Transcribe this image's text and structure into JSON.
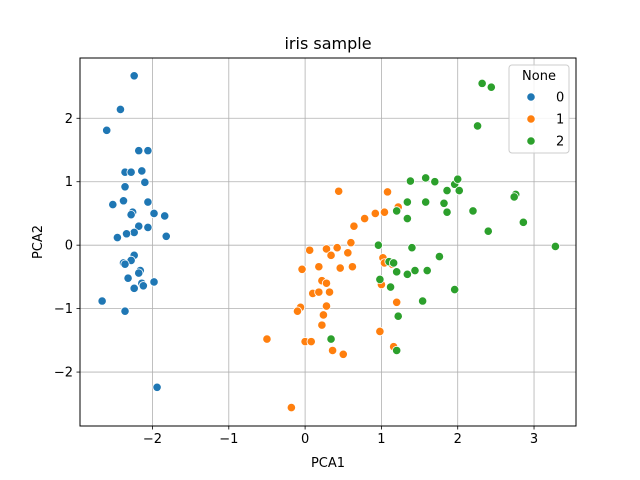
{
  "chart_data": {
    "type": "scatter",
    "title": "iris sample",
    "xlabel": "PCA1",
    "ylabel": "PCA2",
    "xlim": [
      -2.95,
      3.55
    ],
    "ylim": [
      -2.85,
      2.95
    ],
    "xticks": [
      -2,
      -1,
      0,
      1,
      2,
      3
    ],
    "yticks": [
      -2,
      -1,
      0,
      1,
      2
    ],
    "grid": true,
    "legend": {
      "title": "None",
      "placement": "top-right"
    },
    "series": [
      {
        "name": "0",
        "color": "#1f77b4",
        "points": [
          [
            -2.24,
            2.67
          ],
          [
            -2.42,
            2.14
          ],
          [
            -2.6,
            1.81
          ],
          [
            -2.18,
            1.49
          ],
          [
            -2.06,
            1.49
          ],
          [
            -2.36,
            1.15
          ],
          [
            -2.28,
            1.15
          ],
          [
            -2.14,
            1.17
          ],
          [
            -2.1,
            0.99
          ],
          [
            -2.36,
            0.92
          ],
          [
            -2.52,
            0.64
          ],
          [
            -2.38,
            0.7
          ],
          [
            -2.06,
            0.68
          ],
          [
            -2.26,
            0.52
          ],
          [
            -2.28,
            0.48
          ],
          [
            -1.98,
            0.5
          ],
          [
            -1.84,
            0.46
          ],
          [
            -2.18,
            0.3
          ],
          [
            -2.06,
            0.28
          ],
          [
            -2.24,
            0.2
          ],
          [
            -2.34,
            0.18
          ],
          [
            -2.46,
            0.12
          ],
          [
            -1.82,
            0.14
          ],
          [
            -2.24,
            -0.16
          ],
          [
            -2.28,
            -0.24
          ],
          [
            -2.38,
            -0.28
          ],
          [
            -2.36,
            -0.3
          ],
          [
            -2.16,
            -0.4
          ],
          [
            -2.18,
            -0.44
          ],
          [
            -2.32,
            -0.52
          ],
          [
            -2.14,
            -0.6
          ],
          [
            -2.12,
            -0.64
          ],
          [
            -1.98,
            -0.58
          ],
          [
            -2.24,
            -0.68
          ],
          [
            -2.66,
            -0.88
          ],
          [
            -2.36,
            -1.04
          ],
          [
            -1.94,
            -2.24
          ]
        ]
      },
      {
        "name": "1",
        "color": "#ff7f0e",
        "points": [
          [
            0.44,
            0.85
          ],
          [
            1.08,
            0.84
          ],
          [
            1.22,
            0.6
          ],
          [
            0.92,
            0.5
          ],
          [
            1.04,
            0.52
          ],
          [
            0.78,
            0.42
          ],
          [
            0.64,
            0.3
          ],
          [
            0.6,
            0.04
          ],
          [
            0.42,
            -0.04
          ],
          [
            0.28,
            -0.06
          ],
          [
            0.06,
            -0.08
          ],
          [
            0.34,
            -0.16
          ],
          [
            0.56,
            -0.12
          ],
          [
            1.02,
            -0.2
          ],
          [
            0.18,
            -0.34
          ],
          [
            0.46,
            -0.36
          ],
          [
            0.62,
            -0.34
          ],
          [
            1.04,
            -0.28
          ],
          [
            1.14,
            -0.3
          ],
          [
            -0.04,
            -0.38
          ],
          [
            0.22,
            -0.56
          ],
          [
            0.28,
            -0.6
          ],
          [
            1.0,
            -0.62
          ],
          [
            0.1,
            -0.76
          ],
          [
            0.18,
            -0.74
          ],
          [
            0.32,
            -0.74
          ],
          [
            1.2,
            -0.9
          ],
          [
            0.28,
            -0.96
          ],
          [
            -0.06,
            -0.98
          ],
          [
            -0.1,
            -1.04
          ],
          [
            0.24,
            -1.1
          ],
          [
            0.22,
            -1.26
          ],
          [
            0.98,
            -1.36
          ],
          [
            -0.5,
            -1.48
          ],
          [
            0.0,
            -1.52
          ],
          [
            0.08,
            -1.52
          ],
          [
            0.36,
            -1.66
          ],
          [
            0.5,
            -1.72
          ],
          [
            1.16,
            -1.6
          ],
          [
            -0.18,
            -2.56
          ]
        ]
      },
      {
        "name": "2",
        "color": "#2ca02c",
        "points": [
          [
            2.32,
            2.55
          ],
          [
            2.44,
            2.49
          ],
          [
            2.26,
            1.88
          ],
          [
            1.38,
            1.01
          ],
          [
            1.58,
            1.06
          ],
          [
            1.7,
            1.0
          ],
          [
            1.96,
            0.96
          ],
          [
            2.0,
            1.04
          ],
          [
            2.02,
            0.86
          ],
          [
            1.86,
            0.86
          ],
          [
            2.76,
            0.8
          ],
          [
            2.74,
            0.76
          ],
          [
            1.34,
            0.68
          ],
          [
            1.58,
            0.68
          ],
          [
            1.82,
            0.66
          ],
          [
            1.2,
            0.54
          ],
          [
            1.86,
            0.52
          ],
          [
            2.2,
            0.54
          ],
          [
            1.34,
            0.42
          ],
          [
            2.86,
            0.36
          ],
          [
            2.4,
            0.22
          ],
          [
            0.96,
            0.0
          ],
          [
            1.4,
            -0.04
          ],
          [
            3.28,
            -0.02
          ],
          [
            1.1,
            -0.26
          ],
          [
            1.16,
            -0.28
          ],
          [
            1.76,
            -0.18
          ],
          [
            1.34,
            -0.46
          ],
          [
            1.2,
            -0.42
          ],
          [
            1.44,
            -0.4
          ],
          [
            1.6,
            -0.4
          ],
          [
            0.98,
            -0.54
          ],
          [
            1.12,
            -0.66
          ],
          [
            1.96,
            -0.7
          ],
          [
            1.54,
            -0.88
          ],
          [
            1.22,
            -1.12
          ],
          [
            0.34,
            -1.48
          ],
          [
            1.2,
            -1.66
          ]
        ]
      }
    ]
  }
}
